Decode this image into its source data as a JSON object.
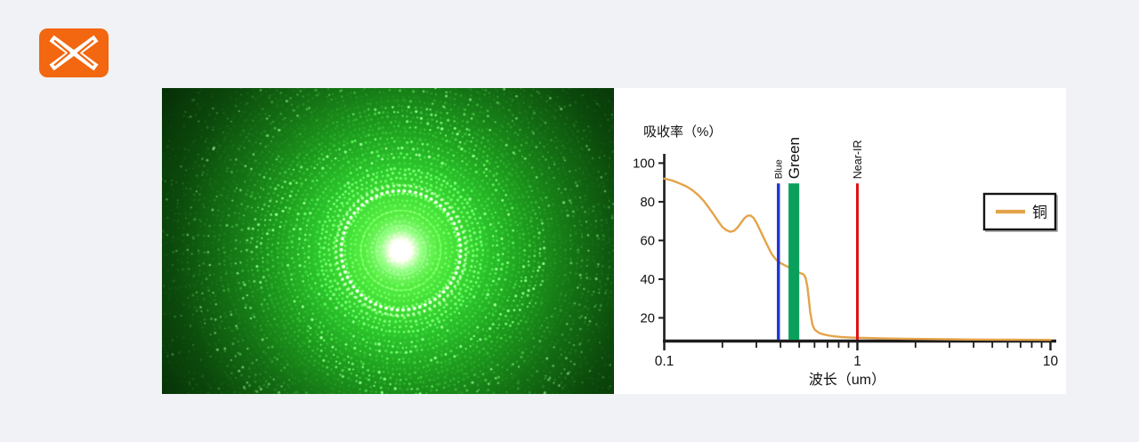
{
  "page": {
    "background": "#f1f2f5",
    "panel_background": "#ffffff"
  },
  "logo": {
    "name": "brand-logo",
    "glyph": "double-chevron-x",
    "background_color": "#F2670F",
    "glyph_color": "#ffffff"
  },
  "left_image": {
    "description": "green laser diffraction dot pattern photo",
    "laser_color": "#35e534",
    "core_color": "#ffffff",
    "background_color": "#061d05"
  },
  "chart_data": {
    "type": "line",
    "title": "",
    "xlabel": "波长（um）",
    "ylabel": "吸收率（%）",
    "x_scale": "log",
    "xlim": [
      0.1,
      10.7
    ],
    "ylim": [
      8,
      104
    ],
    "x_ticks_major": [
      0.1,
      1,
      10
    ],
    "x_tick_labels": [
      "0.1",
      "1",
      "10"
    ],
    "y_ticks": [
      20,
      40,
      60,
      80,
      100
    ],
    "grid": false,
    "legend_position": "right",
    "series": [
      {
        "name": "铜",
        "color": "#E4A349",
        "x": [
          0.1,
          0.11,
          0.12,
          0.13,
          0.14,
          0.15,
          0.16,
          0.17,
          0.18,
          0.19,
          0.2,
          0.21,
          0.22,
          0.23,
          0.24,
          0.25,
          0.26,
          0.27,
          0.28,
          0.29,
          0.3,
          0.32,
          0.34,
          0.36,
          0.38,
          0.4,
          0.42,
          0.44,
          0.46,
          0.48,
          0.5,
          0.52,
          0.53,
          0.54,
          0.55,
          0.56,
          0.57,
          0.585,
          0.6,
          0.63,
          0.66,
          0.7,
          0.75,
          0.82,
          0.9,
          1.0,
          1.2,
          1.5,
          2.0,
          2.5,
          3.0,
          4.0,
          5.0,
          6.5,
          8.0,
          10.0
        ],
        "y": [
          92,
          91,
          89.5,
          88,
          86,
          83.5,
          80.5,
          77,
          73.5,
          70,
          67,
          65.3,
          64.5,
          65,
          66.8,
          69.2,
          71.5,
          72.8,
          72.9,
          71.7,
          69.3,
          63.5,
          58,
          53,
          50,
          48.3,
          47.2,
          46.2,
          45.2,
          44.2,
          43.3,
          42.7,
          42.2,
          40.5,
          36.5,
          30,
          23,
          16.5,
          14,
          12.3,
          11.6,
          11,
          10.5,
          10.1,
          9.9,
          9.7,
          9.5,
          9.3,
          9.1,
          9.0,
          8.9,
          8.8,
          8.75,
          8.7,
          8.65,
          8.6
        ]
      }
    ],
    "markers": [
      {
        "label": "Blue",
        "type": "line",
        "x": 0.39,
        "top": 89.5,
        "color": "#1E32D2",
        "label_size": 11,
        "width": 3.4
      },
      {
        "label": "Green",
        "type": "band",
        "x1": 0.44,
        "x2": 0.5,
        "top": 89.5,
        "color": "#0AA05C",
        "label_size": 17,
        "width": 12
      },
      {
        "label": "Near-IR",
        "type": "line",
        "x": 1.0,
        "top": 89.5,
        "color": "#E01212",
        "label_size": 12.5,
        "width": 3
      }
    ],
    "legend": {
      "entries": [
        {
          "label": "铜",
          "color": "#E4A349"
        }
      ]
    },
    "colors": {
      "axis": "#1c1c1c",
      "text": "#111111"
    }
  }
}
